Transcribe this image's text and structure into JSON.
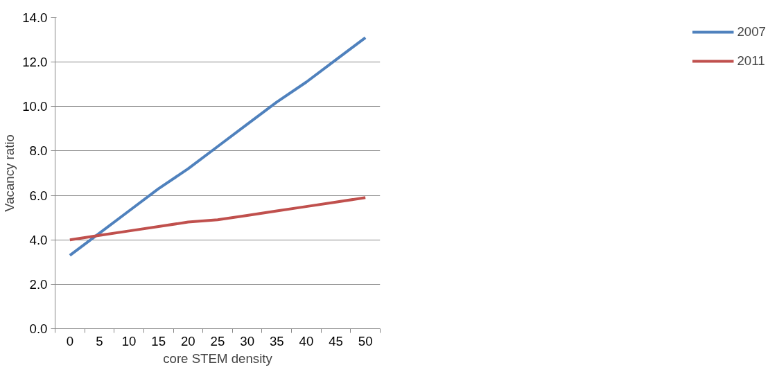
{
  "chart_data": {
    "type": "line",
    "xlabel": "core STEM density",
    "ylabel": "Vacancy ratio",
    "categories": [
      "0",
      "5",
      "10",
      "15",
      "20",
      "25",
      "30",
      "35",
      "40",
      "45",
      "50"
    ],
    "series": [
      {
        "name": "2007",
        "color": "#4f81bd",
        "values": [
          3.3,
          4.3,
          5.3,
          6.3,
          7.2,
          8.2,
          9.2,
          10.2,
          11.1,
          12.1,
          13.1
        ]
      },
      {
        "name": "2011",
        "color": "#c0504d",
        "values": [
          4.0,
          4.2,
          4.4,
          4.6,
          4.8,
          4.9,
          5.1,
          5.3,
          5.5,
          5.7,
          5.9
        ]
      }
    ],
    "ylim": [
      0,
      14
    ],
    "yticks": [
      {
        "value": 0,
        "label": "0.0"
      },
      {
        "value": 2,
        "label": "2.0"
      },
      {
        "value": 4,
        "label": "4.0"
      },
      {
        "value": 6,
        "label": "6.0"
      },
      {
        "value": 8,
        "label": "8.0"
      },
      {
        "value": 10,
        "label": "10.0"
      },
      {
        "value": 12,
        "label": "12.0"
      },
      {
        "value": 14,
        "label": "14.0"
      }
    ],
    "grid": "y",
    "legend": "right",
    "marker": "none",
    "line_style": "solid"
  }
}
